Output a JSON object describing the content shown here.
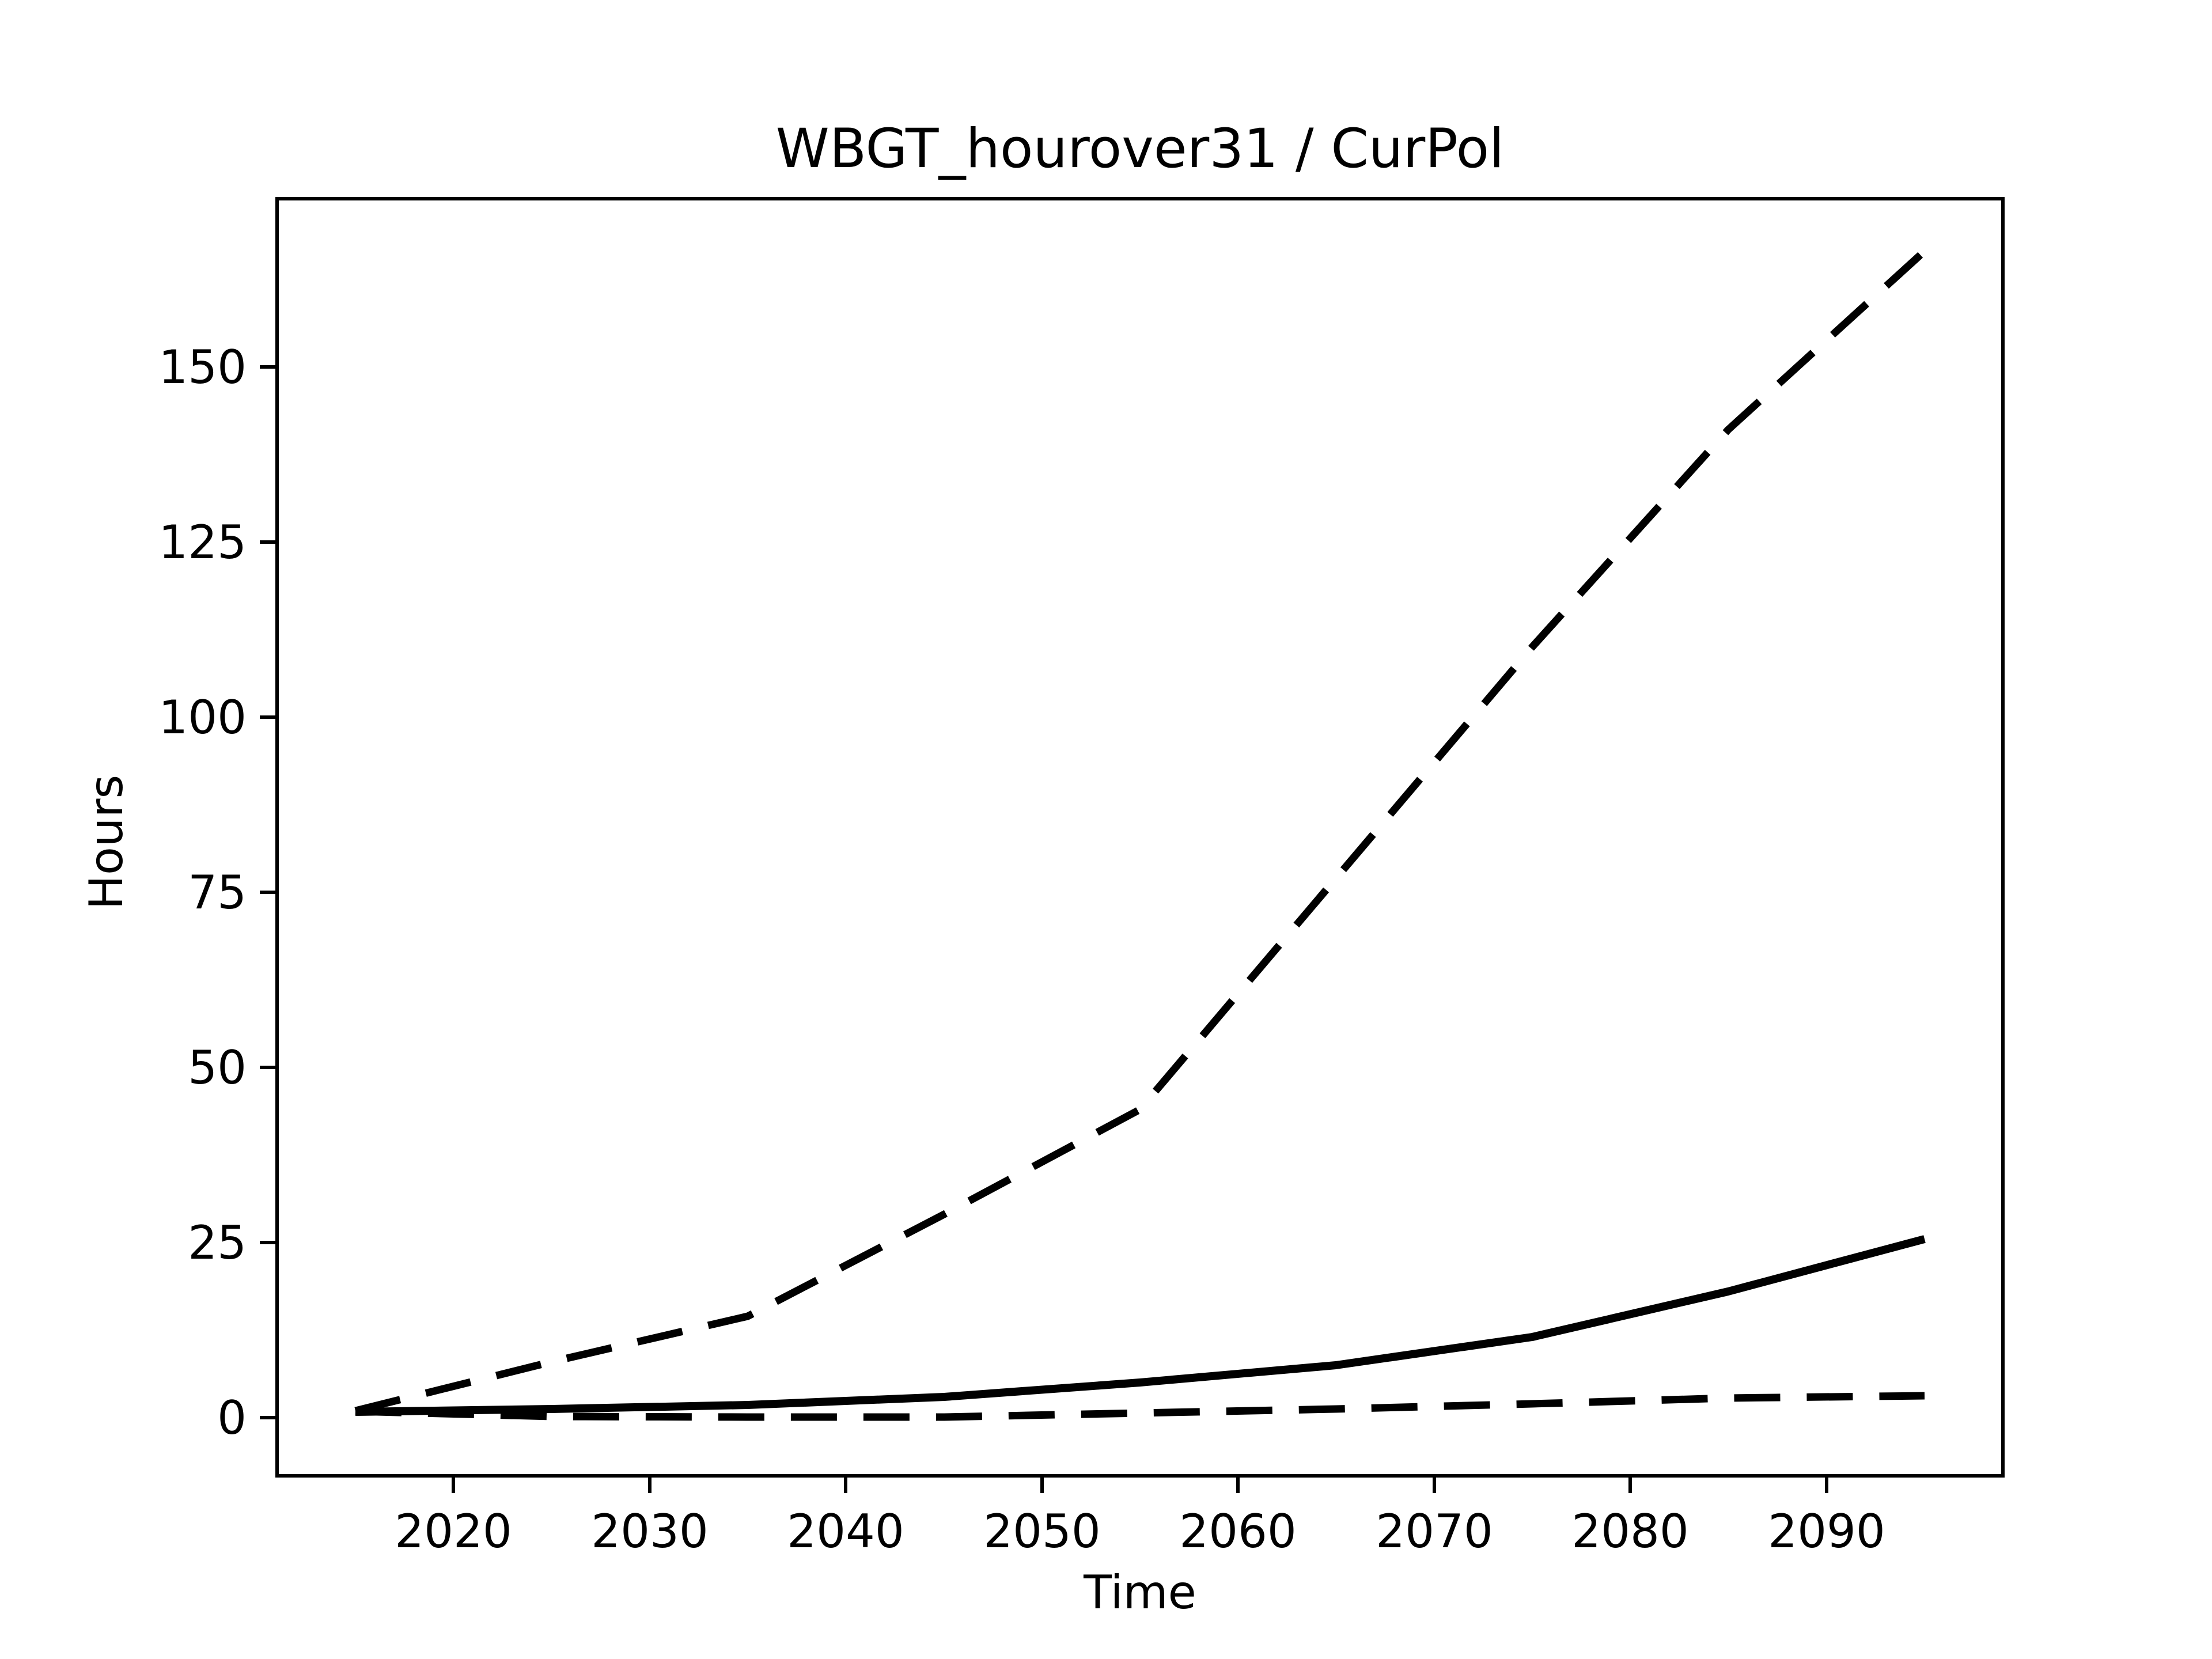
{
  "figure": {
    "background_color": "#ffffff",
    "line_color": "#000000"
  },
  "chart_data": {
    "type": "line",
    "title": "WBGT_hourover31 / CurPol",
    "xlabel": "Time",
    "ylabel": "Hours",
    "x": [
      2015,
      2025,
      2035,
      2045,
      2055,
      2065,
      2075,
      2085,
      2095
    ],
    "series": [
      {
        "name": "upper-dashed",
        "style": "dashed",
        "values": [
          1,
          8,
          14.5,
          29,
          44,
          77,
          110,
          141,
          166.5
        ]
      },
      {
        "name": "middle-solid",
        "style": "solid",
        "values": [
          0.8,
          1.2,
          1.8,
          3,
          5,
          7.5,
          11.5,
          18,
          25.5
        ]
      },
      {
        "name": "lower-dashed",
        "style": "dashed",
        "values": [
          0.9,
          0.2,
          0.1,
          0.1,
          0.7,
          1.2,
          2,
          2.8,
          3.1
        ]
      }
    ],
    "x_ticks": [
      2020,
      2030,
      2040,
      2050,
      2060,
      2070,
      2080,
      2090
    ],
    "y_ticks": [
      0,
      25,
      50,
      75,
      100,
      125,
      150
    ],
    "xlim": [
      2011,
      2099
    ],
    "ylim": [
      -8.3,
      174
    ],
    "grid": false,
    "legend": null
  }
}
